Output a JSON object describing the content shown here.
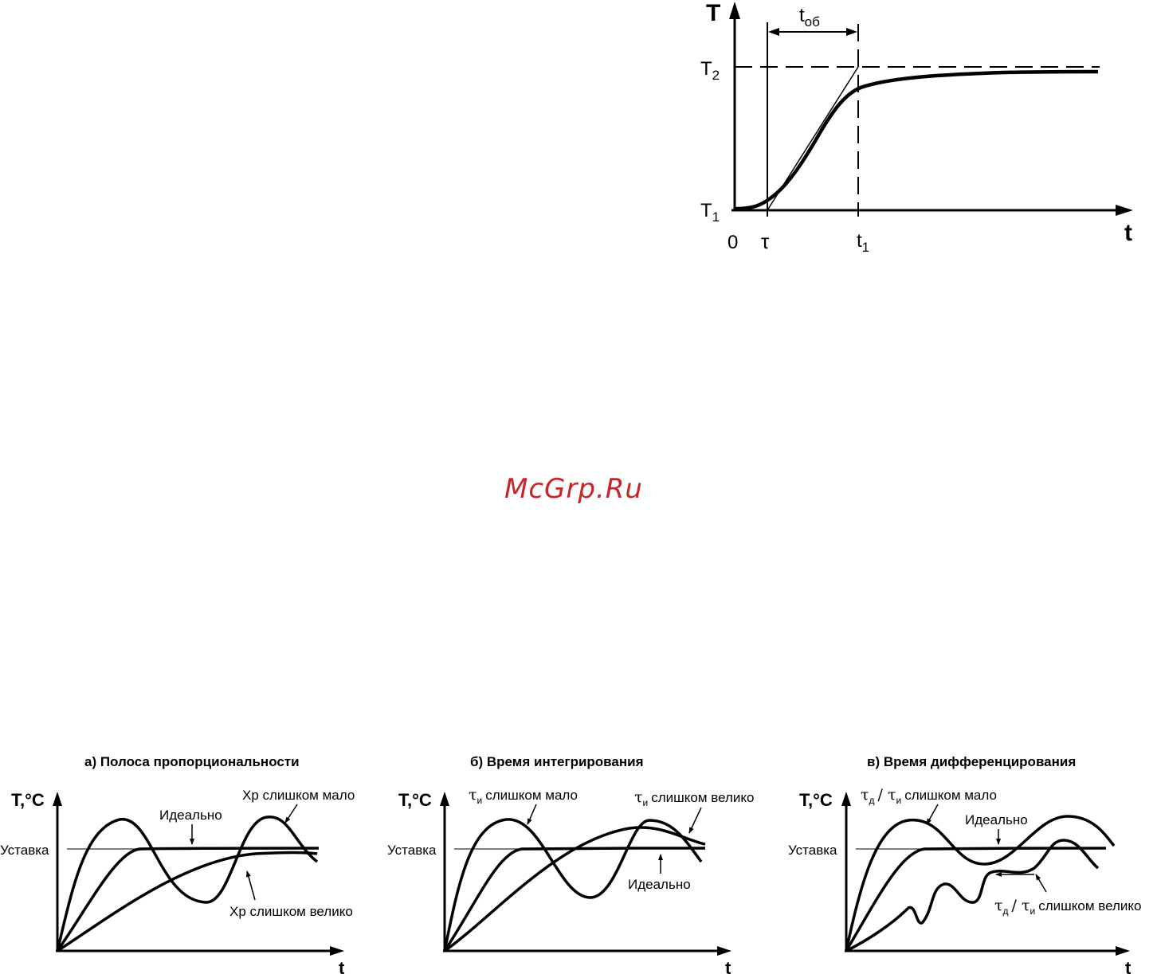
{
  "step": {
    "y_axis": "T",
    "x_axis": "t",
    "origin": "0",
    "t1_level": "T",
    "t1_level_sub": "1",
    "t2_level": "T",
    "t2_level_sub": "2",
    "tau": "τ",
    "t_end": "t",
    "t_end_sub": "1",
    "t_ob": "t",
    "t_ob_sub": "об"
  },
  "watermark": "McGrp.Ru",
  "panels": [
    {
      "title": "а) Полоса пропорциональности",
      "y_axis": "T,",
      "y_axis_unit": "°C",
      "x_axis": "t",
      "setpoint": "Уставка",
      "ideal": "Идеально",
      "too_small": "Хр слишком мало",
      "too_large": "Хр слишком велико"
    },
    {
      "title": "б) Время интегрирования",
      "y_axis": "T,",
      "y_axis_unit": "°C",
      "x_axis": "t",
      "setpoint": "Уставка",
      "ideal": "Идеально",
      "too_small_sym": "τ",
      "too_small_sub": "и",
      "too_small_text": "слишком мало",
      "too_large_sym": "τ",
      "too_large_sub": "и",
      "too_large_text": "слишком велико"
    },
    {
      "title": "в) Время дифференцирования",
      "y_axis": "T,",
      "y_axis_unit": "°C",
      "x_axis": "t",
      "setpoint": "Уставка",
      "ideal": "Идеально",
      "too_small_a": "τ",
      "too_small_a_sub": "д",
      "too_small_sep": "/ τ",
      "too_small_b_sub": "и",
      "too_small_text": "слишком мало",
      "too_large_a": "τ",
      "too_large_a_sub": "д",
      "too_large_sep": "/ τ",
      "too_large_b_sub": "и",
      "too_large_text": "слишком велико"
    }
  ]
}
